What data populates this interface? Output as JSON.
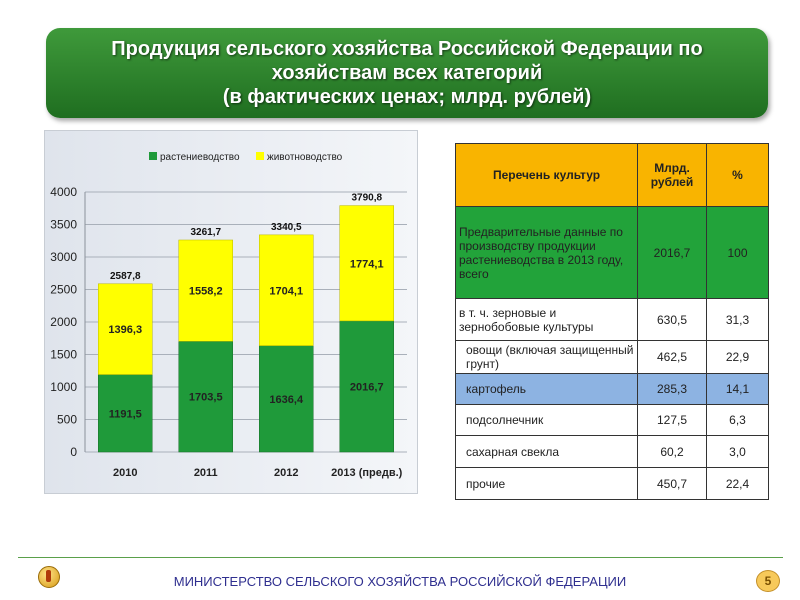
{
  "title": {
    "line1": "Продукция сельского хозяйства Российской Федерации по",
    "line2": "хозяйствам всех категорий",
    "line3": "(в фактических ценах; млрд. рублей)"
  },
  "chart_data": {
    "type": "bar",
    "stacked": true,
    "categories": [
      "2010",
      "2011",
      "2012",
      "2013 (предв.)"
    ],
    "series": [
      {
        "name": "растениеводство",
        "color": "#1f9a3a",
        "values": [
          1191.5,
          1703.5,
          1636.4,
          2016.7
        ],
        "labels": [
          "1191,5",
          "1703,5",
          "1636,4",
          "2016,7"
        ]
      },
      {
        "name": "животноводство",
        "color": "#ffff00",
        "values": [
          1396.3,
          1558.2,
          1704.1,
          1774.1
        ],
        "labels": [
          "1396,3",
          "1558,2",
          "1704,1",
          "1774,1"
        ]
      }
    ],
    "totals": [
      2587.8,
      3261.7,
      3340.5,
      3790.8
    ],
    "total_labels": [
      "2587,8",
      "3261,7",
      "3340,5",
      "3790,8"
    ],
    "ylim": [
      0,
      4000
    ],
    "yticks": [
      "0",
      "500",
      "1000",
      "1500",
      "2000",
      "2500",
      "3000",
      "3500",
      "4000"
    ],
    "grid": true,
    "legend": "top"
  },
  "table": {
    "headers": [
      "Перечень культур",
      "Млрд. рублей",
      "%"
    ],
    "rows": [
      {
        "name": "Предварительные данные по производству продукции растениеводства в 2013 году, всего",
        "value": "2016,7",
        "pct": "100",
        "style": "highlight"
      },
      {
        "name": "в т. ч. зерновые и зернобобовые культуры",
        "value": "630,5",
        "pct": "31,3",
        "style": ""
      },
      {
        "name": "овощи (включая защищенный грунт)",
        "value": "462,5",
        "pct": "22,9",
        "style": ""
      },
      {
        "name": "картофель",
        "value": "285,3",
        "pct": "14,1",
        "style": "blue"
      },
      {
        "name": "подсолнечник",
        "value": "127,5",
        "pct": "6,3",
        "style": ""
      },
      {
        "name": "сахарная свекла",
        "value": "60,2",
        "pct": "3,0",
        "style": ""
      },
      {
        "name": "прочие",
        "value": "450,7",
        "pct": "22,4",
        "style": ""
      }
    ]
  },
  "footer": {
    "ministry": "МИНИСТЕРСТВО СЕЛЬСКОГО ХОЗЯЙСТВА РОССИЙСКОЙ ФЕДЕРАЦИИ",
    "page": "5"
  }
}
